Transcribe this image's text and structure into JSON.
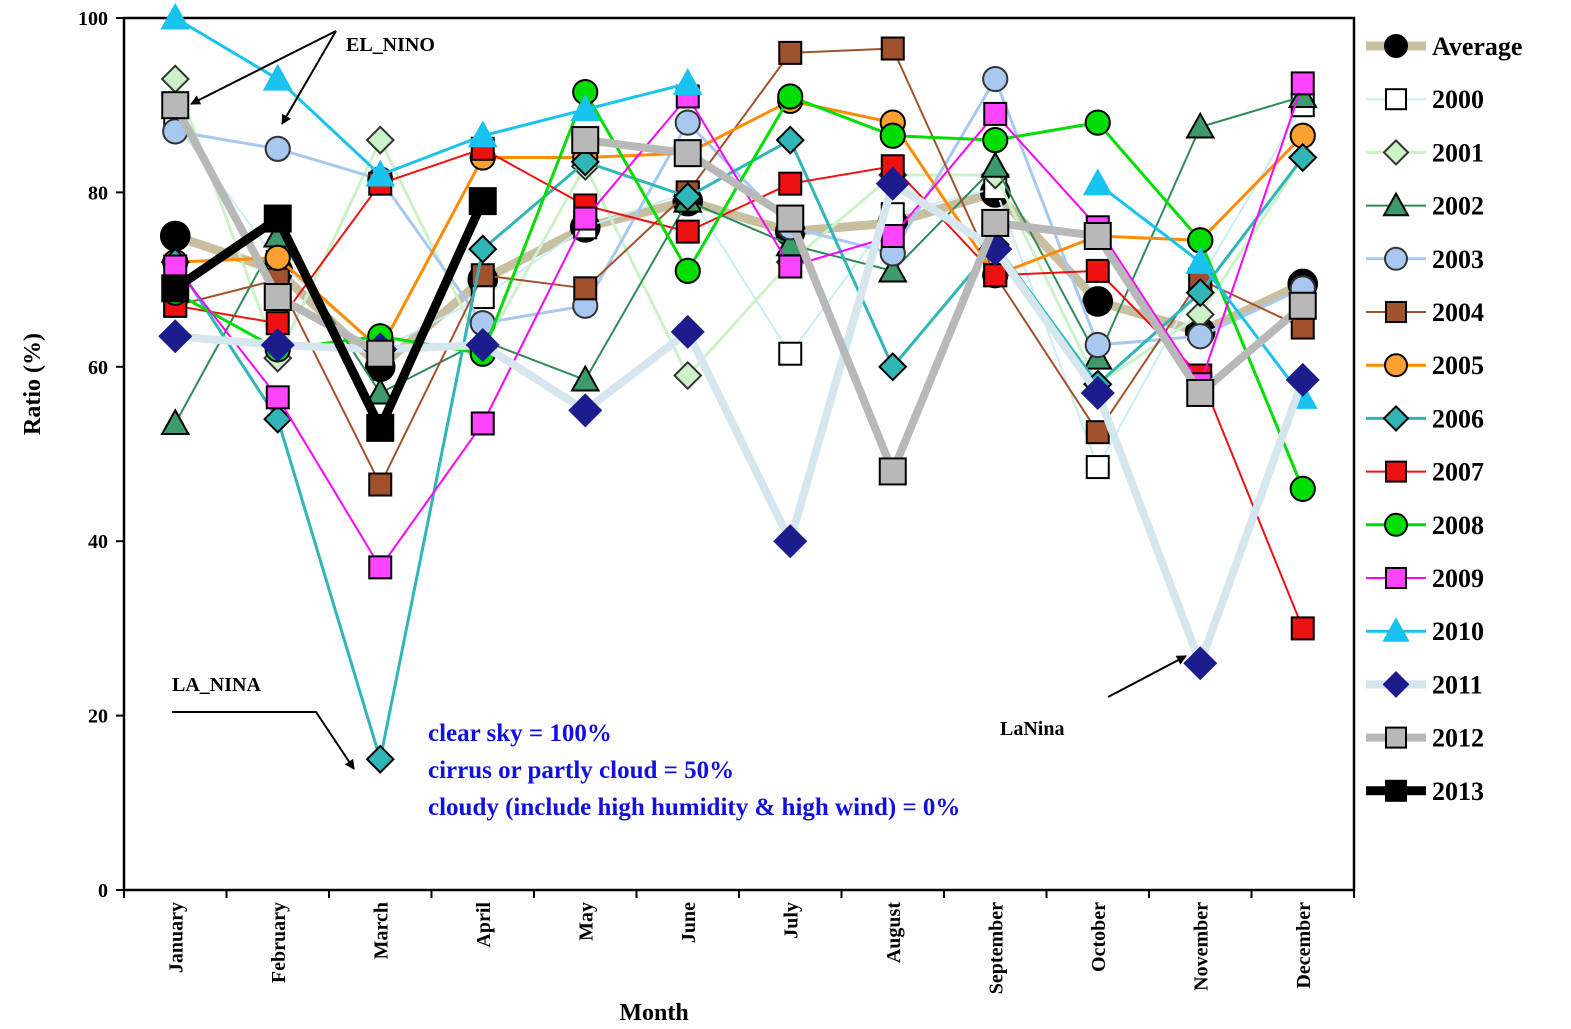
{
  "chart_data": {
    "type": "line",
    "title": "",
    "xlabel": "Month",
    "ylabel": "Ratio (%)",
    "ylim": [
      0,
      100
    ],
    "yticks": [
      0,
      20,
      40,
      60,
      80,
      100
    ],
    "grid": false,
    "legend_position": "right",
    "categories": [
      "January",
      "February",
      "March",
      "April",
      "May",
      "June",
      "July",
      "August",
      "September",
      "October",
      "November",
      "December"
    ],
    "series": [
      {
        "name": "Average",
        "color": "#c8bfa0",
        "line_width": 9,
        "marker": "circle",
        "marker_fill": "#000000",
        "marker_stroke": "#000000",
        "values": [
          75,
          71,
          60,
          70,
          76,
          79,
          75.5,
          76.5,
          80,
          67.5,
          64,
          69.5
        ]
      },
      {
        "name": "2000",
        "color": "#c8eef6",
        "line_width": 2,
        "marker": "square",
        "marker_fill": "#ffffff",
        "marker_stroke": "#000000",
        "values": [
          88,
          72,
          62,
          68,
          76,
          80,
          61.5,
          77.5,
          80.5,
          48.5,
          70,
          90
        ]
      },
      {
        "name": "2001",
        "color": "#ccf2c8",
        "line_width": 3,
        "marker": "diamond",
        "marker_fill": "#ccf2c8",
        "marker_stroke": "#333333",
        "values": [
          93,
          61,
          86,
          62,
          83,
          59,
          72,
          82,
          82,
          58,
          66,
          84
        ]
      },
      {
        "name": "2002",
        "color": "#2e8b57",
        "line_width": 2,
        "marker": "triangle",
        "marker_fill": "#3c9a6b",
        "marker_stroke": "#000000",
        "values": [
          53.5,
          75,
          57,
          63,
          58.5,
          79,
          74,
          71,
          83,
          61,
          87.5,
          91
        ]
      },
      {
        "name": "2003",
        "color": "#a8c8f0",
        "line_width": 3,
        "marker": "circle",
        "marker_fill": "#a8c8f0",
        "marker_stroke": "#333333",
        "values": [
          87,
          85,
          81.5,
          65,
          67,
          88,
          76,
          73,
          93,
          62.5,
          63.5,
          69
        ]
      },
      {
        "name": "2004",
        "color": "#a0522d",
        "line_width": 2,
        "marker": "square",
        "marker_fill": "#a0522d",
        "marker_stroke": "#000000",
        "values": [
          67,
          70,
          46.5,
          70.5,
          69,
          80,
          96,
          96.5,
          70.5,
          52.5,
          70,
          64.5
        ]
      },
      {
        "name": "2005",
        "color": "#ff8c00",
        "line_width": 3,
        "marker": "circle",
        "marker_fill": "#ffa033",
        "marker_stroke": "#000000",
        "values": [
          72,
          72.5,
          62,
          84,
          84,
          84.5,
          90.5,
          88,
          70.5,
          75,
          74.5,
          86.5
        ]
      },
      {
        "name": "2006",
        "color": "#30b6b6",
        "line_width": 3,
        "marker": "diamond",
        "marker_fill": "#30b6b6",
        "marker_stroke": "#000000",
        "values": [
          72,
          54,
          15,
          73.5,
          83.5,
          79.5,
          86,
          60,
          74,
          58,
          68.5,
          84
        ]
      },
      {
        "name": "2007",
        "color": "#ee1111",
        "line_width": 2,
        "marker": "square",
        "marker_fill": "#ee1111",
        "marker_stroke": "#000000",
        "values": [
          67,
          65,
          81,
          85,
          78.5,
          75.5,
          81,
          83,
          70.5,
          71,
          59,
          30
        ]
      },
      {
        "name": "2008",
        "color": "#00dd00",
        "line_width": 3,
        "marker": "circle",
        "marker_fill": "#00dd00",
        "marker_stroke": "#000000",
        "values": [
          68.5,
          62,
          63.5,
          61.5,
          91.5,
          71,
          91,
          86.5,
          86,
          88,
          74.5,
          46
        ]
      },
      {
        "name": "2009",
        "color": "#ff00ff",
        "line_width": 2,
        "marker": "square",
        "marker_fill": "#ff44ff",
        "marker_stroke": "#000000",
        "values": [
          71.5,
          56.5,
          37,
          53.5,
          77,
          91,
          71.5,
          75,
          89,
          76,
          58,
          92.5
        ]
      },
      {
        "name": "2010",
        "color": "#19c3ef",
        "line_width": 3,
        "marker": "triangle",
        "marker_fill": "#19c3ef",
        "marker_stroke": "#19c3ef",
        "values": [
          100,
          93,
          82,
          86.5,
          89.5,
          92.5,
          null,
          null,
          null,
          81,
          72,
          56.5
        ]
      },
      {
        "name": "2011",
        "color": "#d6e6ee",
        "line_width": 8,
        "marker": "diamond",
        "marker_fill": "#1c1c8c",
        "marker_stroke": "#1c1c8c",
        "values": [
          63.5,
          62.5,
          62,
          62.5,
          55,
          64,
          40,
          81,
          73.5,
          57,
          26,
          58.5
        ]
      },
      {
        "name": "2012",
        "color": "#b8b8b8",
        "line_width": 8,
        "marker": "square",
        "marker_fill": "#b8b8b8",
        "marker_stroke": "#000000",
        "values": [
          90,
          68,
          61.5,
          null,
          86,
          84.5,
          77,
          48,
          76.5,
          75,
          57,
          67
        ]
      },
      {
        "name": "2013",
        "color": "#000000",
        "line_width": 9,
        "marker": "square",
        "marker_fill": "#000000",
        "marker_stroke": "#000000",
        "values": [
          69,
          77,
          53,
          79,
          null,
          null,
          null,
          null,
          null,
          null,
          null,
          null
        ]
      }
    ],
    "annotations": [
      {
        "text": "EL_NINO"
      },
      {
        "text": "LA_NINA"
      },
      {
        "text": "LaNina"
      }
    ],
    "note_lines": [
      "clear sky = 100%",
      "cirrus  or  partly  cloud  = 50%",
      "cloudy  (include  high  humidity  & high  wind)  = 0%"
    ],
    "note_color": "#1010e0"
  }
}
